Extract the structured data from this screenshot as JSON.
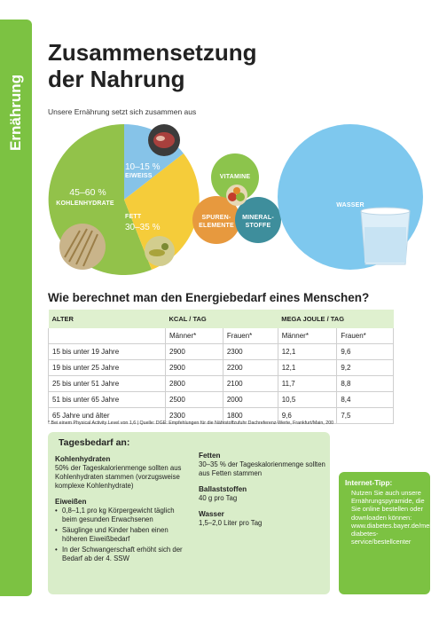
{
  "sidebar": {
    "label": "Ernährung"
  },
  "title_line1": "Zusammensetzung",
  "title_line2": "der Nahrung",
  "subtitle": "Unsere Ernährung setzt sich zusammen aus",
  "diagram": {
    "kohlenhydrate": {
      "pct": "45–60 %",
      "label": "KOHLENHYDRATE"
    },
    "eiweiss": {
      "pct": "10–15 %",
      "label": "EIWEISS"
    },
    "fett": {
      "label": "FETT",
      "pct": "30–35 %"
    },
    "vitamine": {
      "label": "VITAMINE"
    },
    "spurenelemente": {
      "line1": "SPUREN-",
      "line2": "ELEMENTE"
    },
    "mineralstoffe": {
      "line1": "MINERAL-",
      "line2": "STOFFE"
    },
    "wasser": {
      "label": "WASSER"
    },
    "colors": {
      "carbs": "#92c24a",
      "protein": "#86c3e8",
      "fat": "#f5cc3a",
      "vitamine": "#8cc44c",
      "spuren": "#e7993e",
      "mineral": "#3e8e9c",
      "wasser": "#7ec8ee"
    }
  },
  "section_title": "Wie berechnet man den Energiebedarf eines Menschen?",
  "table": {
    "headers": {
      "age": "ALTER",
      "kcal": "KCAL / TAG",
      "mj": "MEGA JOULE / TAG"
    },
    "subheaders": {
      "men": "Männer*",
      "women": "Frauen*"
    },
    "rows": [
      {
        "age": "15 bis unter 19 Jahre",
        "kcal_m": "2900",
        "kcal_w": "2300",
        "mj_m": "12,1",
        "mj_w": "9,6"
      },
      {
        "age": "19 bis unter 25 Jahre",
        "kcal_m": "2900",
        "kcal_w": "2200",
        "mj_m": "12,1",
        "mj_w": "9,2"
      },
      {
        "age": "25 bis unter 51 Jahre",
        "kcal_m": "2800",
        "kcal_w": "2100",
        "mj_m": "11,7",
        "mj_w": "8,8"
      },
      {
        "age": "51 bis unter 65 Jahre",
        "kcal_m": "2500",
        "kcal_w": "2000",
        "mj_m": "10,5",
        "mj_w": "8,4"
      },
      {
        "age": "65 Jahre und älter",
        "kcal_m": "2300",
        "kcal_w": "1800",
        "mj_m": "9,6",
        "mj_w": "7,5"
      }
    ]
  },
  "footnote": "* Bei einem Physical Activity Level von 1,6 | Quelle: DGE: Empfehlungen für die Nährstoffzufuhr Dachreferenz-Werte, Frankfurt/Main, 200",
  "daily": {
    "heading": "Tagesbedarf an:",
    "carbs_title": "Kohlenhydraten",
    "carbs_text": "50% der Tageskalorienmenge sollten aus Kohlenhydraten stammen (vorzugsweise komplexe Kohlenhydrate)",
    "protein_title": "Eiweißen",
    "protein_items": [
      "0,8–1,1 pro kg Körpergewicht täglich beim gesunden Erwachsenen",
      "Säuglinge und Kinder haben einen höheren Eiweißbedarf",
      "In der Schwangerschaft erhöht sich der Bedarf ab der 4. SSW"
    ],
    "fat_title": "Fetten",
    "fat_text": "30–35 % der Tageskalorienmenge sollten aus Fetten stammen",
    "fiber_title": "Ballaststoffen",
    "fiber_text": "40 g pro Tag",
    "water_title": "Wasser",
    "water_text": "1,5–2,0 Liter pro Tag"
  },
  "tip": {
    "heading": "Internet-Tipp:",
    "body": "Nutzen Sie auch unsere Ernährungspyramide, die Sie online bestellen oder downloaden können: www.diabetes.bayer.de/mein-diabetes-service/bestellcenter"
  }
}
